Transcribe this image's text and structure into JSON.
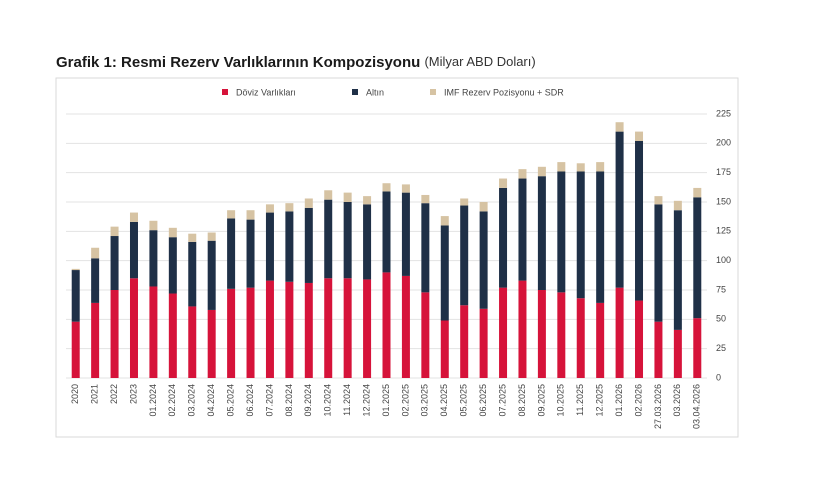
{
  "chart_data": {
    "type": "stacked-bar",
    "title": "Grafik 1: Resmi Rezerv Varlıklarının Kompozisyonu",
    "subtitle": "(Milyar ABD Doları)",
    "categories": [
      "2020",
      "2021",
      "2022",
      "2023",
      "01.2024",
      "02.2024",
      "03.2024",
      "04.2024",
      "05.2024",
      "06.2024",
      "07.2024",
      "08.2024",
      "09.2024",
      "10.2024",
      "11.2024",
      "12.2024",
      "01.2025",
      "02.2025",
      "03.2025",
      "04.2025",
      "05.2025",
      "06.2025",
      "07.2025",
      "08.2025",
      "09.2025",
      "10.2025",
      "11.2025",
      "12.2025",
      "01.2026",
      "02.2026",
      "27.03.2026",
      "03.2026",
      "03.04.2026"
    ],
    "series": [
      {
        "name": "Döviz Varlıkları",
        "color": "#d6133a",
        "values": [
          48,
          64,
          75,
          85,
          78,
          72,
          61,
          58,
          76,
          77,
          83,
          82,
          81,
          85,
          85,
          84,
          90,
          87,
          73,
          49,
          62,
          59,
          77,
          83,
          75,
          73,
          68,
          64,
          77,
          66,
          48,
          41,
          51
        ]
      },
      {
        "name": "Altın",
        "color": "#1f3047",
        "values": [
          44,
          38,
          46,
          48,
          48,
          48,
          55,
          59,
          60,
          58,
          58,
          60,
          64,
          67,
          65,
          64,
          69,
          71,
          76,
          81,
          85,
          83,
          85,
          87,
          97,
          103,
          108,
          112,
          133,
          136,
          100,
          102,
          103
        ]
      },
      {
        "name": "IMF Rezerv Pozisyonu + SDR",
        "color": "#d6c3a3",
        "values": [
          1,
          9,
          8,
          8,
          8,
          8,
          7,
          7,
          7,
          8,
          7,
          7,
          8,
          8,
          8,
          7,
          7,
          7,
          7,
          8,
          6,
          8,
          8,
          8,
          8,
          8,
          7,
          8,
          8,
          8,
          7,
          8,
          8
        ]
      }
    ],
    "ylim": [
      0,
      225
    ],
    "yticks": [
      0,
      25,
      50,
      75,
      100,
      125,
      150,
      175,
      200,
      225
    ],
    "grid": true,
    "legend": "top"
  }
}
